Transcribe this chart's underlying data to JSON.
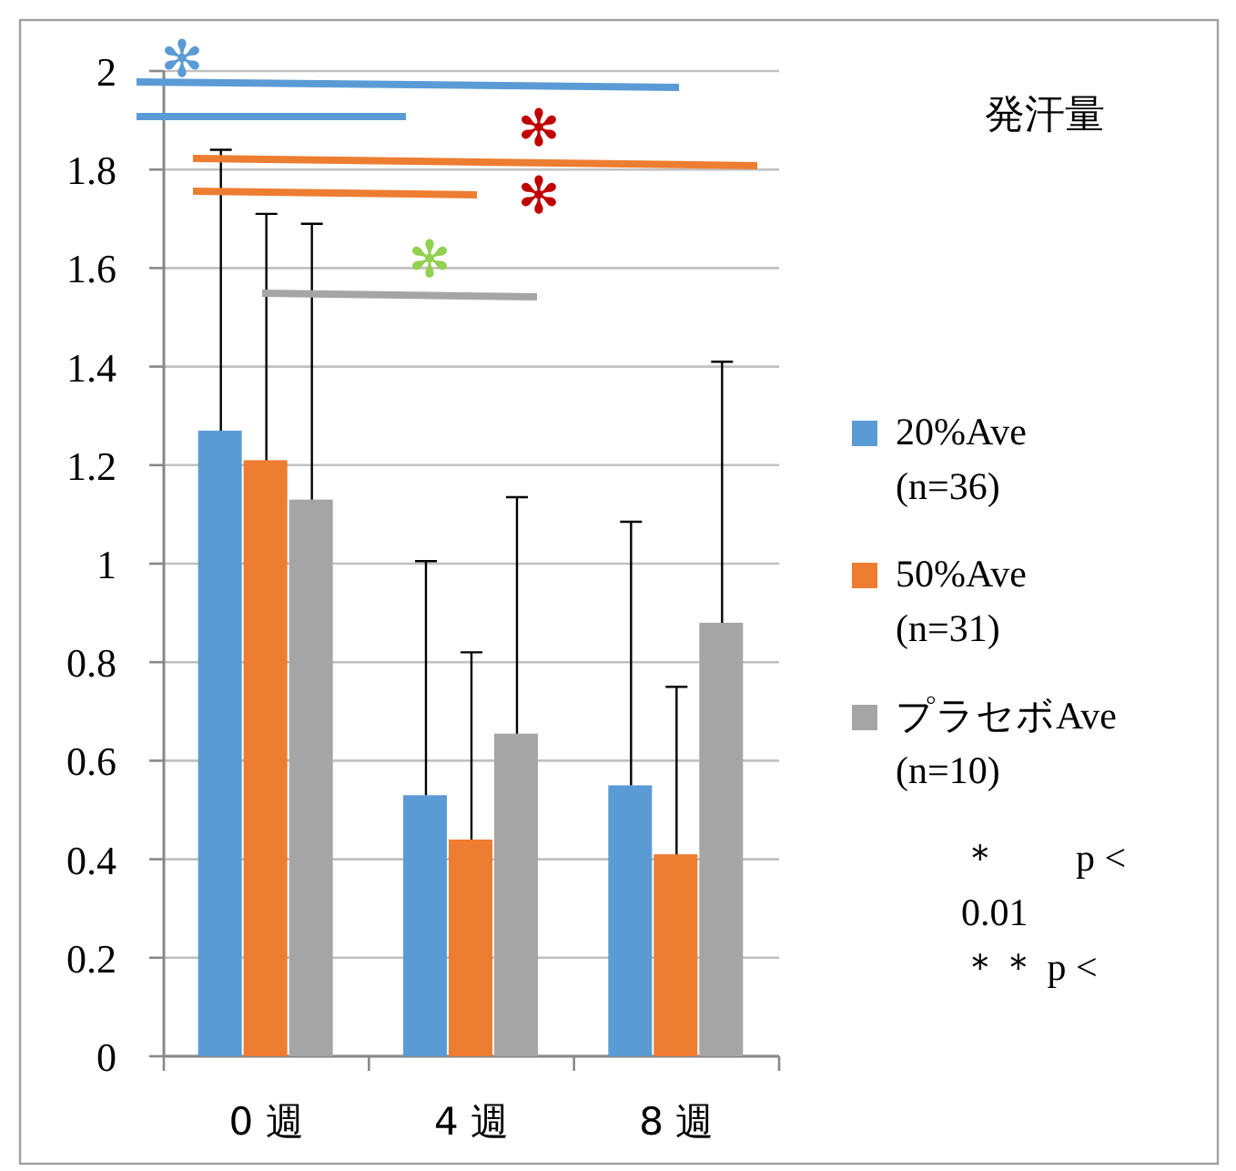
{
  "chart_data": {
    "type": "bar",
    "title": "発汗量",
    "categories": [
      "0 週",
      "4 週",
      "8 週"
    ],
    "series": [
      {
        "name": "20%Ave (n=36)",
        "color": "#5b9bd5",
        "values": [
          1.27,
          0.53,
          0.55
        ],
        "errors": [
          [
            1.27,
            1.84
          ],
          [
            0.53,
            1.005
          ],
          [
            0.55,
            1.085
          ]
        ]
      },
      {
        "name": "50%Ave (n=31)",
        "color": "#ed7d31",
        "values": [
          1.21,
          0.44,
          0.41
        ],
        "errors": [
          [
            1.21,
            1.71
          ],
          [
            0.44,
            0.82
          ],
          [
            0.41,
            0.75
          ]
        ]
      },
      {
        "name": "プラセボAve (n=10)",
        "color": "#a5a5a5",
        "values": [
          1.13,
          0.655,
          0.88
        ],
        "errors": [
          [
            1.13,
            1.69
          ],
          [
            0.655,
            1.135
          ],
          [
            0.88,
            1.41
          ]
        ]
      }
    ],
    "ylim": [
      0,
      2
    ],
    "yticks": [
      0,
      0.2,
      0.4,
      0.6,
      0.8,
      1,
      1.2,
      1.4,
      1.6,
      1.8,
      2
    ],
    "grid": "y",
    "legend": "right",
    "annotations": [
      "✻",
      "✻",
      "✻",
      "✻",
      "＊　　p < 0.01",
      "＊＊ p <"
    ]
  }
}
